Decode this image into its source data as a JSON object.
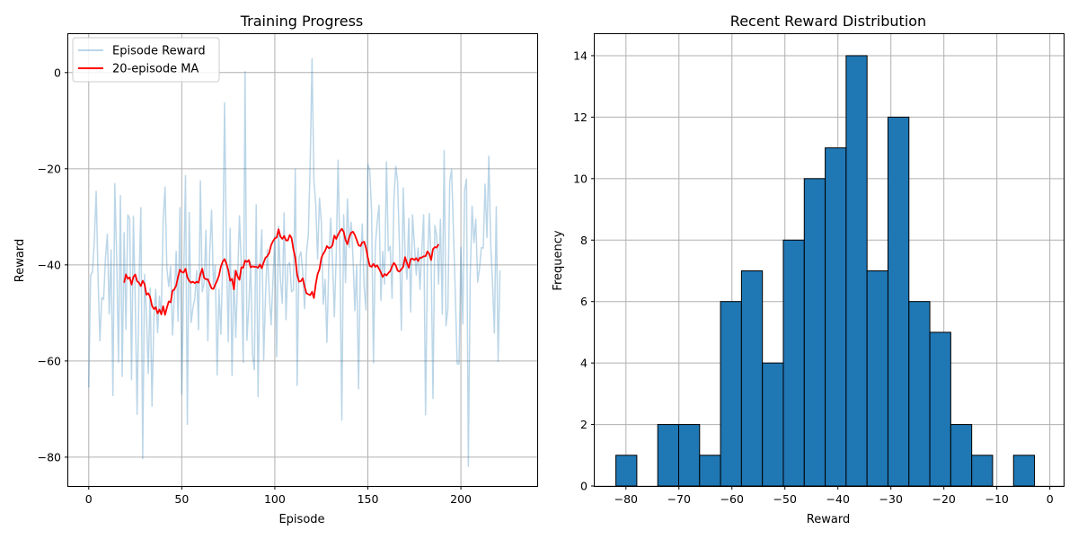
{
  "chart_data": [
    {
      "type": "line",
      "title": "Training Progress",
      "xlabel": "Episode",
      "ylabel": "Reward",
      "xlim": [
        -11,
        241
      ],
      "ylim": [
        -86,
        8
      ],
      "xticks": [
        0,
        50,
        100,
        150,
        200
      ],
      "xtick_labels": [
        "0",
        "50",
        "100",
        "150",
        "200"
      ],
      "yticks": [
        -80,
        -60,
        -40,
        -20,
        0
      ],
      "ytick_labels": [
        "−80",
        "−60",
        "−40",
        "−20",
        "0"
      ],
      "grid": true,
      "legend": "top-left",
      "series": [
        {
          "name": "Episode Reward",
          "color": "#1f77b4",
          "opacity": 0.3,
          "x_start": 0,
          "values": [
            -65.5,
            -42.2,
            -41.5,
            -35.1,
            -24.7,
            -42.4,
            -55.8,
            -46.8,
            -47.2,
            -38.5,
            -33.6,
            -50.2,
            -36.9,
            -67.2,
            -23.1,
            -38.4,
            -60.2,
            -25.6,
            -63.2,
            -33.3,
            -53.4,
            -29.6,
            -30.4,
            -63.9,
            -29.9,
            -47.7,
            -71.1,
            -44.2,
            -28.1,
            -80.3,
            -42.0,
            -50.3,
            -62.6,
            -44.8,
            -69.4,
            -51.0,
            -45.1,
            -54.1,
            -46.5,
            -50.4,
            -30.6,
            -23.8,
            -40.8,
            -44.5,
            -40.3,
            -54.6,
            -46.8,
            -37.2,
            -51.7,
            -28.1,
            -66.9,
            -43.2,
            -21.4,
            -73.2,
            -29.1,
            -52.0,
            -49.0,
            -47.0,
            -41.2,
            -53.5,
            -22.5,
            -45.6,
            -43.7,
            -32.8,
            -55.8,
            -37.4,
            -28.6,
            -44.2,
            -40.1,
            -62.9,
            -45.1,
            -54.4,
            -39.3,
            -6.3,
            -37.6,
            -56.0,
            -32.4,
            -63.0,
            -41.1,
            -55.1,
            -42.9,
            -29.8,
            -40.2,
            -60.3,
            0.2,
            -55.7,
            -48.8,
            -39.3,
            -58.5,
            -61.8,
            -27.5,
            -67.4,
            -40.5,
            -32.7,
            -59.8,
            -46.4,
            -36.8,
            -45.8,
            -52.5,
            -43.1,
            -34.0,
            -59.1,
            -32.0,
            -43.0,
            -48.0,
            -29.2,
            -51.4,
            -40.0,
            -39.5,
            -45.6,
            -45.2,
            -20.1,
            -65.1,
            -38.5,
            -37.3,
            -41.6,
            -49.1,
            -37.6,
            -33.7,
            -19.2,
            2.9,
            -22.5,
            -27.4,
            -38.8,
            -26.1,
            -31.2,
            -48.2,
            -43.0,
            -56.1,
            -39.9,
            -30.3,
            -39.2,
            -50.8,
            -38.0,
            -18.2,
            -38.9,
            -72.3,
            -29.6,
            -43.7,
            -26.3,
            -36.4,
            -31.1,
            -38.4,
            -49.5,
            -40.1,
            -65.8,
            -39.9,
            -31.5,
            -44.6,
            -49.4,
            -19.1,
            -20.3,
            -28.8,
            -60.4,
            -36.1,
            -31.2,
            -27.6,
            -47.4,
            -37.2,
            -44.0,
            -18.6,
            -37.1,
            -36.1,
            -47.0,
            -26.4,
            -19.5,
            -22.8,
            -36.2,
            -53.6,
            -24.0,
            -37.8,
            -43.0,
            -30.3,
            -49.8,
            -29.6,
            -35.7,
            -42.1,
            -36.5,
            -45.1,
            -36.9,
            -29.6,
            -71.2,
            -40.0,
            -29.3,
            -39.0,
            -67.8,
            -31.8,
            -34.0,
            -44.0,
            -30.5,
            -50.3,
            -16.2,
            -52.7,
            -49.1,
            -22.7,
            -20.2,
            -33.0,
            -46.1,
            -60.6,
            -60.6,
            -36.4,
            -52.3,
            -24.5,
            -22.1,
            -81.9,
            -42.5,
            -27.8,
            -35.4,
            -30.5,
            -43.6,
            -40.7,
            -36.4,
            -36.5,
            -23.2,
            -34.3,
            -17.4,
            -35.5,
            -43.8,
            -54.2,
            -27.9,
            -60.1,
            -41.2
          ]
        },
        {
          "name": "20-episode MA",
          "color": "#ff0000",
          "opacity": 1.0,
          "x_start": 19,
          "values": [
            -43.7,
            -42.0,
            -42.9,
            -42.6,
            -44.1,
            -42.5,
            -42.0,
            -43.4,
            -43.7,
            -44.4,
            -43.3,
            -44.0,
            -46.2,
            -45.9,
            -46.7,
            -48.5,
            -49.2,
            -48.8,
            -50.1,
            -49.3,
            -50.3,
            -48.6,
            -50.4,
            -48.9,
            -47.6,
            -47.8,
            -45.4,
            -45.1,
            -44.3,
            -42.5,
            -41.0,
            -41.5,
            -41.6,
            -40.8,
            -42.6,
            -43.3,
            -43.7,
            -43.5,
            -43.8,
            -43.5,
            -43.7,
            -42.0,
            -40.8,
            -42.7,
            -43.0,
            -43.0,
            -43.9,
            -44.9,
            -45.0,
            -44.1,
            -43.3,
            -42.2,
            -40.4,
            -39.3,
            -38.8,
            -39.8,
            -41.1,
            -43.3,
            -42.9,
            -45.1,
            -41.2,
            -42.4,
            -43.1,
            -40.5,
            -40.6,
            -39.1,
            -39.4,
            -39.0,
            -40.5,
            -40.3,
            -40.4,
            -40.4,
            -40.6,
            -39.9,
            -40.7,
            -39.5,
            -38.5,
            -38.2,
            -37.5,
            -35.9,
            -35.1,
            -34.5,
            -34.3,
            -32.6,
            -34.1,
            -34.6,
            -34.0,
            -34.9,
            -34.9,
            -33.8,
            -34.4,
            -36.8,
            -38.6,
            -42.0,
            -43.5,
            -43.4,
            -42.8,
            -44.5,
            -45.9,
            -46.1,
            -46.3,
            -45.6,
            -46.9,
            -44.0,
            -41.9,
            -40.9,
            -38.6,
            -37.7,
            -37.1,
            -36.1,
            -36.5,
            -36.4,
            -35.9,
            -33.9,
            -34.6,
            -33.7,
            -33.0,
            -32.5,
            -33.1,
            -34.8,
            -35.7,
            -34.2,
            -33.3,
            -33.1,
            -33.8,
            -34.8,
            -35.9,
            -36.1,
            -35.3,
            -35.2,
            -36.5,
            -38.5,
            -40.2,
            -40.4,
            -39.8,
            -40.4,
            -40.1,
            -40.8,
            -41.6,
            -42.5,
            -41.9,
            -42.2,
            -41.7,
            -41.3,
            -40.3,
            -39.6,
            -40.1,
            -41.2,
            -41.4,
            -40.9,
            -40.4,
            -38.4,
            -39.6,
            -40.6,
            -38.8,
            -38.7,
            -39.0,
            -38.6,
            -39.2,
            -38.5,
            -38.5,
            -38.2,
            -38.2,
            -37.2,
            -37.7,
            -39.0,
            -36.7,
            -36.3,
            -36.4,
            -35.7
          ]
        }
      ]
    },
    {
      "type": "bar",
      "subtype": "histogram",
      "title": "Recent Reward Distribution",
      "xlabel": "Reward",
      "ylabel": "Frequency",
      "xlim": [
        -85.9,
        2.6
      ],
      "ylim": [
        0,
        14.7
      ],
      "xticks": [
        -80,
        -70,
        -60,
        -50,
        -40,
        -30,
        -20,
        -10,
        0
      ],
      "xtick_labels": [
        "−80",
        "−70",
        "−60",
        "−50",
        "−40",
        "−30",
        "−20",
        "−10",
        "0"
      ],
      "yticks": [
        0,
        2,
        4,
        6,
        8,
        10,
        12,
        14
      ],
      "ytick_labels": [
        "0",
        "2",
        "4",
        "6",
        "8",
        "10",
        "12",
        "14"
      ],
      "grid": true,
      "bar_color": "#1f77b4",
      "edge_color": "#000000",
      "bin_edges": [
        -81.9,
        -77.95,
        -74.0,
        -70.05,
        -66.1,
        -62.15,
        -58.2,
        -54.25,
        -50.3,
        -46.35,
        -42.4,
        -38.45,
        -34.5,
        -30.55,
        -26.6,
        -22.65,
        -18.7,
        -14.75,
        -10.8,
        -6.85,
        -2.9
      ],
      "values": [
        1,
        0,
        2,
        2,
        1,
        6,
        7,
        4,
        8,
        10,
        11,
        14,
        7,
        12,
        6,
        5,
        2,
        1,
        0,
        1
      ]
    }
  ]
}
